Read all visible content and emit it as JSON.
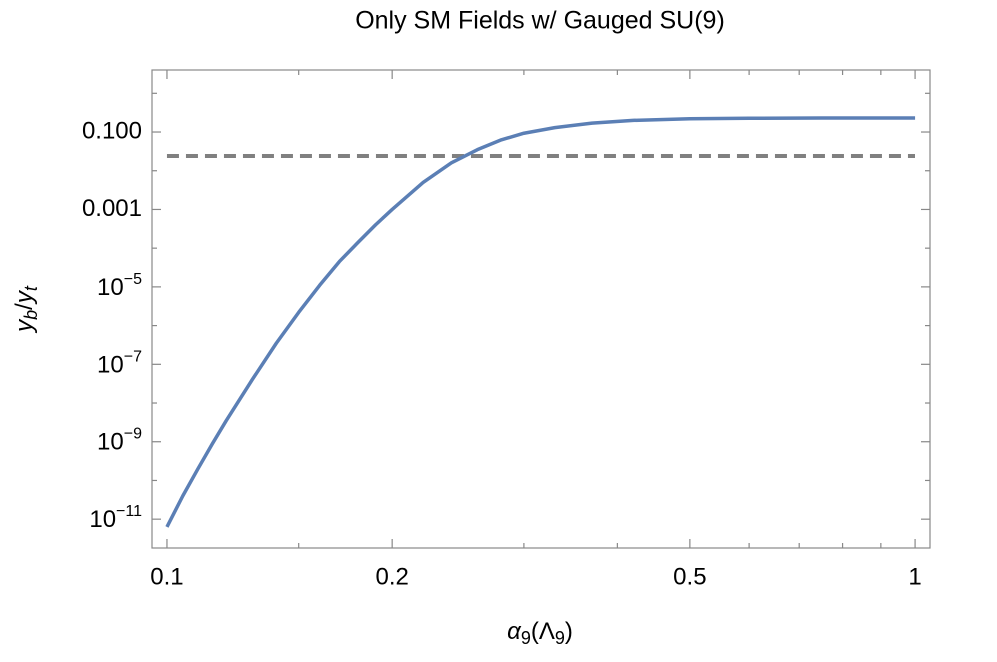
{
  "chart_data": {
    "type": "line",
    "title": "Only SM Fields w/ Gauged SU(9)",
    "x_label": [
      {
        "text": "α",
        "style": "italic"
      },
      {
        "text": "9",
        "style": "sub"
      },
      {
        "text": "(Λ",
        "style": "normal"
      },
      {
        "text": "9",
        "style": "sub"
      },
      {
        "text": ")",
        "style": "normal"
      }
    ],
    "y_label": [
      {
        "text": "y",
        "style": "italic"
      },
      {
        "text": "b",
        "style": "sub-italic"
      },
      {
        "text": "/",
        "style": "normal"
      },
      {
        "text": "y",
        "style": "italic"
      },
      {
        "text": "t",
        "style": "sub-italic"
      }
    ],
    "x_log": true,
    "y_log": true,
    "xlim": [
      0.0955,
      1.047
    ],
    "ylim": [
      1.8e-12,
      4.0
    ],
    "xticks": [
      0.1,
      0.2,
      0.5,
      1
    ],
    "x_minor_ticks": [
      0.15,
      0.3,
      0.4,
      0.6,
      0.7,
      0.8,
      0.9
    ],
    "yticks": [
      {
        "value": 0.1,
        "label": "0.100"
      },
      0.001,
      {
        "value": 1e-05,
        "label": {
          "base": "10",
          "exponent": "−5"
        }
      },
      {
        "value": 1e-07,
        "label": {
          "base": "10",
          "exponent": "−7"
        }
      },
      {
        "value": 1e-09,
        "label": {
          "base": "10",
          "exponent": "−9"
        }
      },
      {
        "value": 1e-11,
        "label": {
          "base": "10",
          "exponent": "−11"
        }
      }
    ],
    "y_minor_ticks": [
      1,
      0.01,
      0.0001,
      1e-06,
      1e-08,
      1e-10
    ],
    "x": [
      0.1,
      0.105,
      0.11,
      0.115,
      0.12,
      0.13,
      0.14,
      0.15,
      0.16,
      0.17,
      0.18,
      0.19,
      0.2,
      0.22,
      0.24,
      0.26,
      0.28,
      0.3,
      0.33,
      0.37,
      0.42,
      0.5,
      0.6,
      0.75,
      1
    ],
    "series": [
      {
        "color": "#5b7fb5",
        "values": [
          6.3e-12,
          4e-11,
          2e-10,
          8.9e-10,
          3.5e-09,
          4e-08,
          3.5e-07,
          2.2e-06,
          1.1e-05,
          4.5e-05,
          0.00014,
          0.0004,
          0.001,
          0.005,
          0.016,
          0.035,
          0.063,
          0.093,
          0.13,
          0.17,
          0.2,
          0.22,
          0.226,
          0.23,
          0.23
        ]
      }
    ],
    "reference_lines": [
      {
        "value": 0.024,
        "color": "#808080",
        "dashed": true
      }
    ]
  }
}
